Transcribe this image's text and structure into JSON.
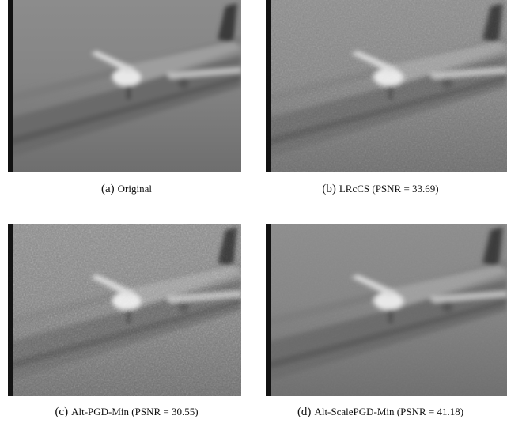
{
  "panels": [
    {
      "label": "(a)",
      "caption": "Original"
    },
    {
      "label": "(b)",
      "caption": "LRcCS (PSNR = 33.69)"
    },
    {
      "label": "(c)",
      "caption": "Alt-PGD-Min (PSNR = 30.55)"
    },
    {
      "label": "(d)",
      "caption": "Alt-ScalePGD-Min (PSNR = 41.18)"
    }
  ]
}
